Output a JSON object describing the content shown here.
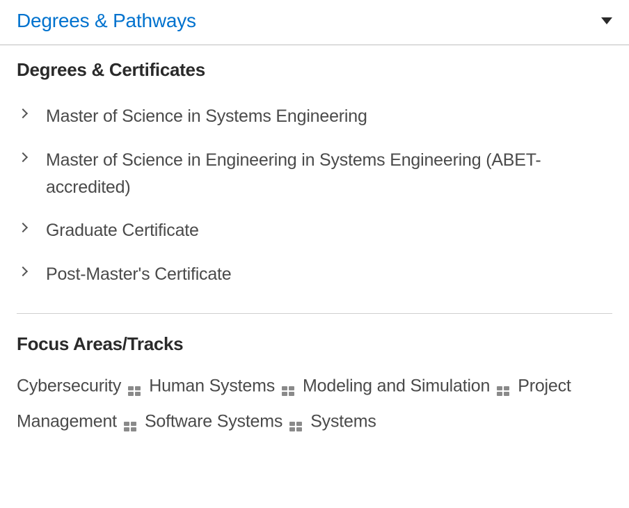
{
  "panel": {
    "title": "Degrees & Pathways"
  },
  "degrees": {
    "section_title": "Degrees & Certificates",
    "items": [
      {
        "label": "Master of Science in Systems Engineering"
      },
      {
        "label": "Master of Science in Engineering in Systems Engineering (ABET-accredited)"
      },
      {
        "label": "Graduate Certificate"
      },
      {
        "label": "Post-Master's Certificate"
      }
    ]
  },
  "focus": {
    "section_title": "Focus Areas/Tracks",
    "areas": [
      "Cybersecurity",
      "Human Systems",
      "Modeling and Simulation",
      "Project Management",
      "Software Systems",
      "Systems"
    ]
  },
  "colors": {
    "accent": "#0072ce",
    "text": "#4a4a4a",
    "heading": "#2a2a2a",
    "divider": "#bfbfbf",
    "sep_icon": "#8a8a8a"
  }
}
